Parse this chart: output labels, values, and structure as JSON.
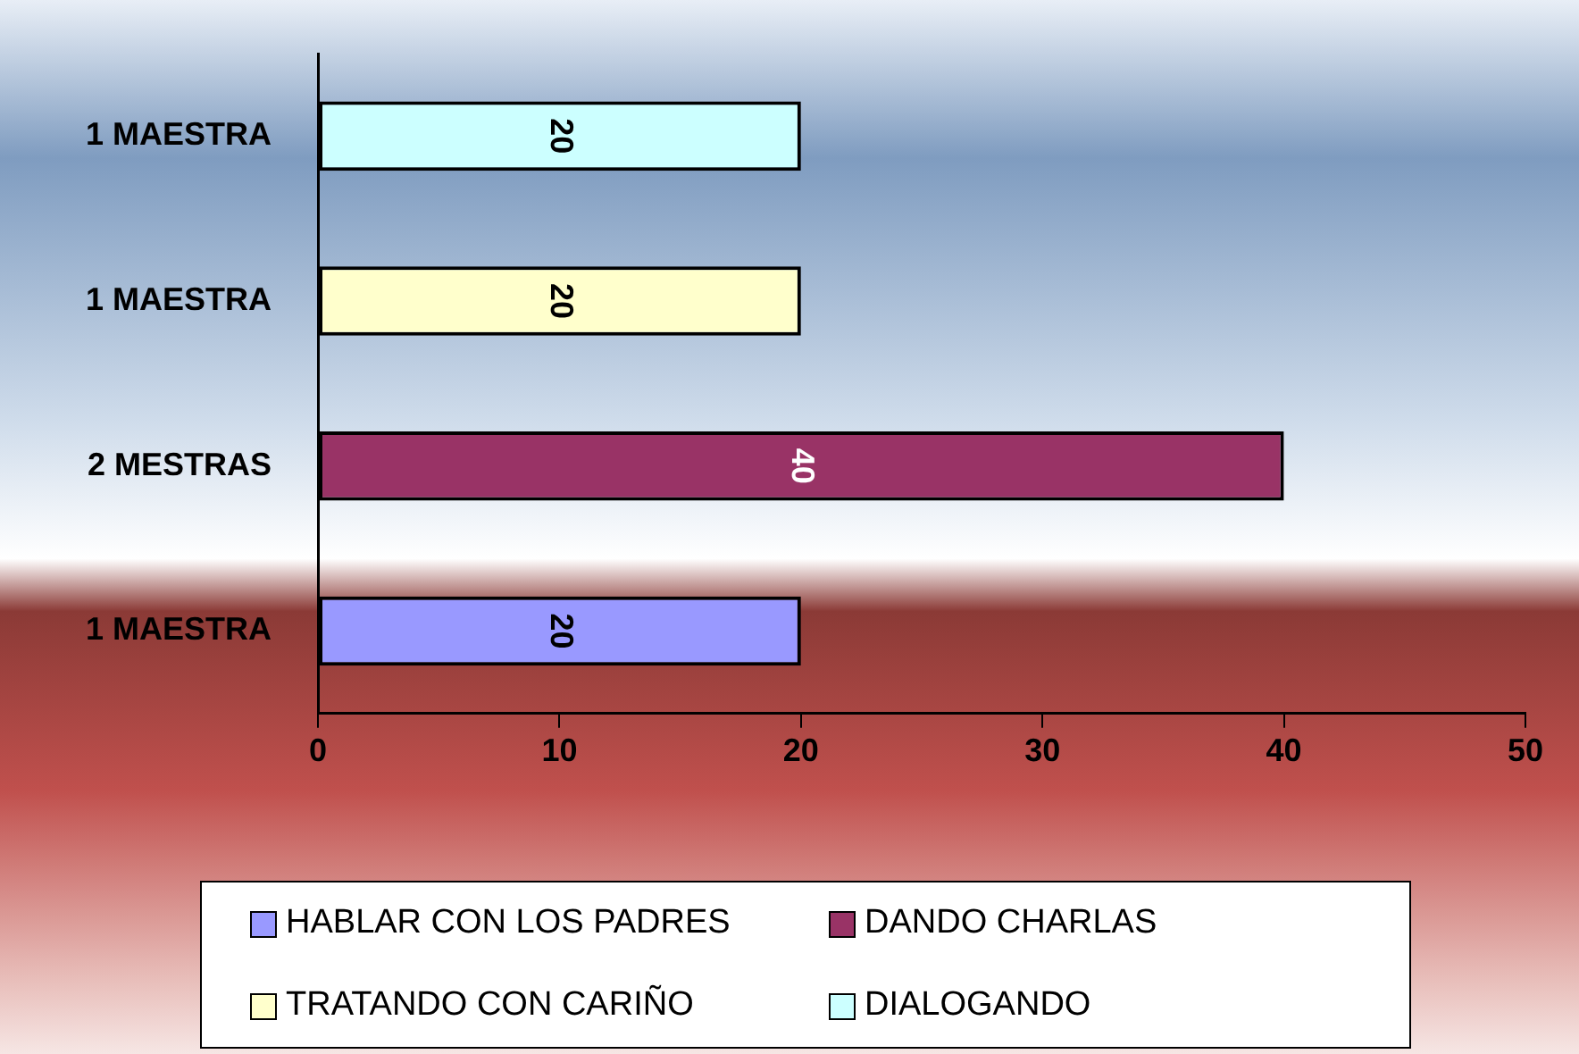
{
  "chart_data": {
    "type": "bar",
    "orientation": "horizontal",
    "categories": [
      "1 MAESTRA",
      "1 MAESTRA",
      "2 MESTRAS",
      "1 MAESTRA"
    ],
    "series": [
      {
        "name": "HABLAR CON LOS PADRES",
        "color": "#9999ff",
        "values": [
          null,
          null,
          null,
          20
        ]
      },
      {
        "name": "DANDO CHARLAS",
        "color": "#993366",
        "values": [
          null,
          null,
          40,
          null
        ]
      },
      {
        "name": "TRATANDO CON CARIÑO",
        "color": "#ffffcc",
        "values": [
          null,
          20,
          null,
          null
        ]
      },
      {
        "name": "DIALOGANDO",
        "color": "#ccffff",
        "values": [
          20,
          null,
          null,
          null
        ]
      }
    ],
    "xlim": [
      0,
      50
    ],
    "xticks": [
      0,
      10,
      20,
      30,
      40,
      50
    ],
    "data_labels": true,
    "legend": "bottom"
  }
}
